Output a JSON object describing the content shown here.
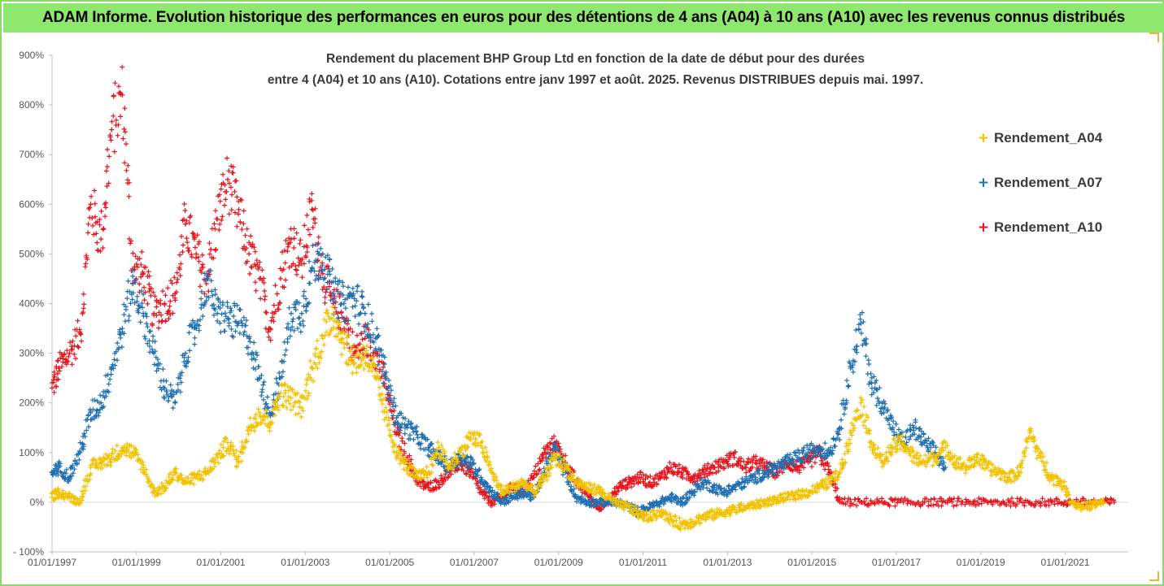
{
  "banner": {
    "title": "ADAM Informe. Evolution historique des performances en euros pour des détentions de 4 ans (A04) à 10 ans (A10) avec les revenus connus distribués"
  },
  "chart_data": {
    "type": "scatter",
    "title_lines": [
      "Rendement du placement BHP Group Ltd en fonction de la date de début pour des durées",
      "entre 4 (A04) et 10 ans (A10). Cotations entre janv 1997 et août. 2025. Revenus DISTRIBUES depuis mai. 1997."
    ],
    "xlabel": "",
    "ylabel": "",
    "x_range": [
      "1997-01-01",
      "2022-06-30"
    ],
    "x_ticks": [
      "01/01/1997",
      "01/01/1999",
      "01/01/2001",
      "01/01/2003",
      "01/01/2005",
      "01/01/2007",
      "01/01/2009",
      "01/01/2011",
      "01/01/2013",
      "01/01/2015",
      "01/01/2017",
      "01/01/2019",
      "01/01/2021"
    ],
    "ylim": [
      -100,
      900
    ],
    "y_ticks": [
      "- 100%",
      "0%",
      "100%",
      "200%",
      "300%",
      "400%",
      "500%",
      "600%",
      "700%",
      "800%",
      "900%"
    ],
    "y_unit": "%",
    "grid": false,
    "legend_position": "right",
    "series": [
      {
        "name": "Rendement_A04",
        "color": "#f2c200",
        "points": [
          [
            "1997-01-01",
            10
          ],
          [
            "1997-03-01",
            20
          ],
          [
            "1997-06-01",
            10
          ],
          [
            "1997-09-01",
            0
          ],
          [
            "1997-12-01",
            70
          ],
          [
            "1998-03-01",
            80
          ],
          [
            "1998-06-01",
            90
          ],
          [
            "1998-09-01",
            110
          ],
          [
            "1998-12-01",
            100
          ],
          [
            "1999-03-01",
            70
          ],
          [
            "1999-06-01",
            20
          ],
          [
            "1999-09-01",
            30
          ],
          [
            "1999-12-01",
            60
          ],
          [
            "2000-03-01",
            40
          ],
          [
            "2000-06-01",
            50
          ],
          [
            "2000-09-01",
            60
          ],
          [
            "2000-12-01",
            90
          ],
          [
            "2001-03-01",
            120
          ],
          [
            "2001-06-01",
            80
          ],
          [
            "2001-09-01",
            150
          ],
          [
            "2001-12-01",
            180
          ],
          [
            "2002-03-01",
            160
          ],
          [
            "2002-06-01",
            220
          ],
          [
            "2002-09-01",
            210
          ],
          [
            "2002-12-01",
            190
          ],
          [
            "2003-03-01",
            270
          ],
          [
            "2003-06-01",
            330
          ],
          [
            "2003-09-01",
            380
          ],
          [
            "2003-12-01",
            320
          ],
          [
            "2004-03-01",
            280
          ],
          [
            "2004-06-01",
            300
          ],
          [
            "2004-09-01",
            250
          ],
          [
            "2004-12-01",
            170
          ],
          [
            "2005-03-01",
            100
          ],
          [
            "2005-06-01",
            70
          ],
          [
            "2005-09-01",
            50
          ],
          [
            "2005-12-01",
            60
          ],
          [
            "2006-03-01",
            110
          ],
          [
            "2006-06-01",
            70
          ],
          [
            "2006-09-01",
            100
          ],
          [
            "2006-12-01",
            130
          ],
          [
            "2007-03-01",
            120
          ],
          [
            "2007-06-01",
            60
          ],
          [
            "2007-09-01",
            20
          ],
          [
            "2007-12-01",
            30
          ],
          [
            "2008-03-01",
            40
          ],
          [
            "2008-06-01",
            20
          ],
          [
            "2008-09-01",
            50
          ],
          [
            "2008-12-01",
            90
          ],
          [
            "2009-03-01",
            70
          ],
          [
            "2009-06-01",
            40
          ],
          [
            "2009-09-01",
            30
          ],
          [
            "2009-12-01",
            25
          ],
          [
            "2010-03-01",
            10
          ],
          [
            "2010-06-01",
            -5
          ],
          [
            "2010-09-01",
            -10
          ],
          [
            "2010-12-01",
            -25
          ],
          [
            "2011-03-01",
            -30
          ],
          [
            "2011-06-01",
            -20
          ],
          [
            "2011-09-01",
            -35
          ],
          [
            "2011-12-01",
            -45
          ],
          [
            "2012-03-01",
            -40
          ],
          [
            "2012-06-01",
            -30
          ],
          [
            "2012-09-01",
            -25
          ],
          [
            "2012-12-01",
            -20
          ],
          [
            "2013-03-01",
            -15
          ],
          [
            "2013-06-01",
            -10
          ],
          [
            "2013-09-01",
            -5
          ],
          [
            "2013-12-01",
            0
          ],
          [
            "2014-03-01",
            5
          ],
          [
            "2014-06-01",
            10
          ],
          [
            "2014-09-01",
            15
          ],
          [
            "2014-12-01",
            20
          ],
          [
            "2015-03-01",
            30
          ],
          [
            "2015-06-01",
            40
          ],
          [
            "2015-09-01",
            60
          ],
          [
            "2015-12-01",
            140
          ],
          [
            "2016-03-01",
            200
          ],
          [
            "2016-06-01",
            120
          ],
          [
            "2016-09-01",
            80
          ],
          [
            "2016-12-01",
            110
          ],
          [
            "2017-03-01",
            120
          ],
          [
            "2017-06-01",
            90
          ],
          [
            "2017-09-01",
            80
          ],
          [
            "2017-12-01",
            90
          ],
          [
            "2018-03-01",
            110
          ],
          [
            "2018-06-01",
            80
          ],
          [
            "2018-09-01",
            70
          ],
          [
            "2018-12-01",
            90
          ],
          [
            "2019-03-01",
            70
          ],
          [
            "2019-06-01",
            60
          ],
          [
            "2019-09-01",
            50
          ],
          [
            "2019-12-01",
            60
          ],
          [
            "2020-03-01",
            140
          ],
          [
            "2020-06-01",
            90
          ],
          [
            "2020-09-01",
            50
          ],
          [
            "2020-12-01",
            40
          ],
          [
            "2021-03-01",
            0
          ],
          [
            "2021-06-01",
            -10
          ],
          [
            "2021-09-01",
            -5
          ],
          [
            "2021-12-01",
            0
          ]
        ]
      },
      {
        "name": "Rendement_A07",
        "color": "#1f6fb2",
        "points": [
          [
            "1997-01-01",
            60
          ],
          [
            "1997-03-01",
            70
          ],
          [
            "1997-06-01",
            50
          ],
          [
            "1997-09-01",
            100
          ],
          [
            "1997-12-01",
            180
          ],
          [
            "1998-03-01",
            200
          ],
          [
            "1998-06-01",
            270
          ],
          [
            "1998-09-01",
            350
          ],
          [
            "1998-12-01",
            440
          ],
          [
            "1999-03-01",
            380
          ],
          [
            "1999-06-01",
            300
          ],
          [
            "1999-09-01",
            230
          ],
          [
            "1999-12-01",
            200
          ],
          [
            "2000-03-01",
            300
          ],
          [
            "2000-06-01",
            350
          ],
          [
            "2000-09-01",
            450
          ],
          [
            "2000-12-01",
            380
          ],
          [
            "2001-03-01",
            370
          ],
          [
            "2001-06-01",
            360
          ],
          [
            "2001-09-01",
            330
          ],
          [
            "2001-12-01",
            250
          ],
          [
            "2002-03-01",
            180
          ],
          [
            "2002-06-01",
            250
          ],
          [
            "2002-09-01",
            380
          ],
          [
            "2002-12-01",
            380
          ],
          [
            "2003-03-01",
            470
          ],
          [
            "2003-06-01",
            500
          ],
          [
            "2003-09-01",
            420
          ],
          [
            "2003-12-01",
            400
          ],
          [
            "2004-03-01",
            410
          ],
          [
            "2004-06-01",
            380
          ],
          [
            "2004-09-01",
            330
          ],
          [
            "2004-12-01",
            250
          ],
          [
            "2005-03-01",
            170
          ],
          [
            "2005-06-01",
            150
          ],
          [
            "2005-09-01",
            130
          ],
          [
            "2005-12-01",
            110
          ],
          [
            "2006-03-01",
            90
          ],
          [
            "2006-06-01",
            70
          ],
          [
            "2006-09-01",
            90
          ],
          [
            "2006-12-01",
            80
          ],
          [
            "2007-03-01",
            50
          ],
          [
            "2007-06-01",
            20
          ],
          [
            "2007-09-01",
            0
          ],
          [
            "2007-12-01",
            10
          ],
          [
            "2008-03-01",
            20
          ],
          [
            "2008-06-01",
            10
          ],
          [
            "2008-09-01",
            60
          ],
          [
            "2008-12-01",
            110
          ],
          [
            "2009-03-01",
            60
          ],
          [
            "2009-06-01",
            10
          ],
          [
            "2009-09-01",
            0
          ],
          [
            "2009-12-01",
            0
          ],
          [
            "2010-03-01",
            0
          ],
          [
            "2010-06-01",
            0
          ],
          [
            "2010-09-01",
            -10
          ],
          [
            "2010-12-01",
            -20
          ],
          [
            "2011-03-01",
            -10
          ],
          [
            "2011-06-01",
            0
          ],
          [
            "2011-09-01",
            10
          ],
          [
            "2011-12-01",
            0
          ],
          [
            "2012-03-01",
            20
          ],
          [
            "2012-06-01",
            40
          ],
          [
            "2012-09-01",
            30
          ],
          [
            "2012-12-01",
            20
          ],
          [
            "2013-03-01",
            30
          ],
          [
            "2013-06-01",
            40
          ],
          [
            "2013-09-01",
            50
          ],
          [
            "2013-12-01",
            60
          ],
          [
            "2014-03-01",
            70
          ],
          [
            "2014-06-01",
            80
          ],
          [
            "2014-09-01",
            90
          ],
          [
            "2014-12-01",
            100
          ],
          [
            "2015-03-01",
            110
          ],
          [
            "2015-06-01",
            100
          ],
          [
            "2015-09-01",
            150
          ],
          [
            "2015-12-01",
            270
          ],
          [
            "2016-03-01",
            360
          ],
          [
            "2016-06-01",
            240
          ],
          [
            "2016-09-01",
            200
          ],
          [
            "2016-12-01",
            150
          ],
          [
            "2017-03-01",
            120
          ],
          [
            "2017-06-01",
            150
          ],
          [
            "2017-09-01",
            120
          ],
          [
            "2017-12-01",
            100
          ],
          [
            "2018-03-01",
            70
          ]
        ]
      },
      {
        "name": "Rendement_A10",
        "color": "#e8141c",
        "points": [
          [
            "1997-01-01",
            230
          ],
          [
            "1997-03-01",
            270
          ],
          [
            "1997-06-01",
            300
          ],
          [
            "1997-09-01",
            340
          ],
          [
            "1997-12-01",
            600
          ],
          [
            "1998-03-01",
            530
          ],
          [
            "1998-06-01",
            750
          ],
          [
            "1998-09-01",
            820
          ],
          [
            "1998-12-01",
            470
          ],
          [
            "1999-03-01",
            460
          ],
          [
            "1999-06-01",
            380
          ],
          [
            "1999-09-01",
            400
          ],
          [
            "1999-12-01",
            420
          ],
          [
            "2000-03-01",
            560
          ],
          [
            "2000-06-01",
            500
          ],
          [
            "2000-09-01",
            450
          ],
          [
            "2000-12-01",
            570
          ],
          [
            "2001-03-01",
            650
          ],
          [
            "2001-06-01",
            580
          ],
          [
            "2001-09-01",
            500
          ],
          [
            "2001-12-01",
            450
          ],
          [
            "2002-03-01",
            350
          ],
          [
            "2002-06-01",
            450
          ],
          [
            "2002-09-01",
            530
          ],
          [
            "2002-12-01",
            480
          ],
          [
            "2003-03-01",
            590
          ],
          [
            "2003-06-01",
            460
          ],
          [
            "2003-09-01",
            400
          ],
          [
            "2003-12-01",
            370
          ],
          [
            "2004-03-01",
            300
          ],
          [
            "2004-06-01",
            330
          ],
          [
            "2004-09-01",
            300
          ],
          [
            "2004-12-01",
            230
          ],
          [
            "2005-03-01",
            140
          ],
          [
            "2005-06-01",
            90
          ],
          [
            "2005-09-01",
            40
          ],
          [
            "2005-12-01",
            30
          ],
          [
            "2006-03-01",
            40
          ],
          [
            "2006-06-01",
            60
          ],
          [
            "2006-09-01",
            80
          ],
          [
            "2006-12-01",
            60
          ],
          [
            "2007-03-01",
            20
          ],
          [
            "2007-06-01",
            0
          ],
          [
            "2007-09-01",
            10
          ],
          [
            "2007-12-01",
            30
          ],
          [
            "2008-03-01",
            20
          ],
          [
            "2008-06-01",
            50
          ],
          [
            "2008-09-01",
            100
          ],
          [
            "2008-12-01",
            120
          ],
          [
            "2009-03-01",
            80
          ],
          [
            "2009-06-01",
            40
          ],
          [
            "2009-09-01",
            20
          ],
          [
            "2009-12-01",
            -10
          ],
          [
            "2010-03-01",
            0
          ],
          [
            "2010-06-01",
            30
          ],
          [
            "2010-09-01",
            40
          ],
          [
            "2010-12-01",
            50
          ],
          [
            "2011-03-01",
            40
          ],
          [
            "2011-06-01",
            50
          ],
          [
            "2011-09-01",
            70
          ],
          [
            "2011-12-01",
            60
          ],
          [
            "2012-03-01",
            50
          ],
          [
            "2012-06-01",
            60
          ],
          [
            "2012-09-01",
            70
          ],
          [
            "2012-12-01",
            80
          ],
          [
            "2013-03-01",
            90
          ],
          [
            "2013-06-01",
            70
          ],
          [
            "2013-09-01",
            80
          ],
          [
            "2013-12-01",
            70
          ],
          [
            "2014-03-01",
            60
          ],
          [
            "2014-06-01",
            80
          ],
          [
            "2014-09-01",
            70
          ],
          [
            "2014-12-01",
            80
          ],
          [
            "2015-03-01",
            100
          ],
          [
            "2015-06-01",
            60
          ],
          [
            "2015-09-01",
            0
          ],
          [
            "2016-03-01",
            0
          ],
          [
            "2016-09-01",
            0
          ],
          [
            "2017-03-01",
            0
          ],
          [
            "2017-09-01",
            0
          ],
          [
            "2018-03-01",
            0
          ],
          [
            "2018-09-01",
            0
          ],
          [
            "2019-03-01",
            0
          ],
          [
            "2019-09-01",
            0
          ],
          [
            "2020-03-01",
            0
          ],
          [
            "2020-09-01",
            0
          ],
          [
            "2021-03-01",
            0
          ],
          [
            "2021-09-01",
            0
          ],
          [
            "2022-03-01",
            0
          ]
        ]
      }
    ]
  }
}
